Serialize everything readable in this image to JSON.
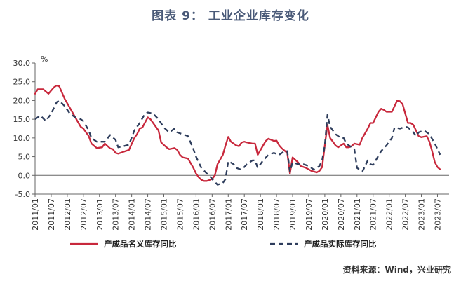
{
  "title": "图表 9： 工业企业库存变化",
  "source": "资料来源：Wind，兴业研究",
  "colors": {
    "nominal": "#c8283c",
    "actual": "#2e3d5c",
    "axis": "#666666",
    "title": "#4a5a78"
  },
  "chart_data": {
    "type": "line",
    "title": "图表 9： 工业企业库存变化",
    "unit_label": "%",
    "ylim": [
      -5,
      30
    ],
    "yticks": [
      "-5.0",
      "0.0",
      "5.0",
      "10.0",
      "15.0",
      "20.0",
      "25.0",
      "30.0"
    ],
    "xticks": [
      "2011/01",
      "2011/07",
      "2012/01",
      "2012/07",
      "2013/01",
      "2013/07",
      "2014/01",
      "2014/07",
      "2015/01",
      "2015/07",
      "2016/01",
      "2016/07",
      "2017/01",
      "2017/07",
      "2018/01",
      "2018/07",
      "2019/01",
      "2019/07",
      "2020/01",
      "2020/07",
      "2021/01",
      "2021/07",
      "2022/01",
      "2022/07",
      "2023/01",
      "2023/07"
    ],
    "grid": false,
    "legend_position": "bottom",
    "series": [
      {
        "name": "产成品名义库存同比",
        "color": "#c8283c",
        "style": "solid",
        "points": [
          [
            "2011/01",
            21.8
          ],
          [
            "2011/02",
            23
          ],
          [
            "2011/04",
            23
          ],
          [
            "2011/06",
            21.8
          ],
          [
            "2011/08",
            23.5
          ],
          [
            "2011/09",
            24
          ],
          [
            "2011/10",
            23.8
          ],
          [
            "2011/12",
            20.5
          ],
          [
            "2012/02",
            18
          ],
          [
            "2012/04",
            15.5
          ],
          [
            "2012/06",
            13
          ],
          [
            "2012/07",
            12.5
          ],
          [
            "2012/09",
            10.5
          ],
          [
            "2012/10",
            8.5
          ],
          [
            "2012/12",
            7.3
          ],
          [
            "2013/02",
            7.5
          ],
          [
            "2013/03",
            8.5
          ],
          [
            "2013/05",
            7.2
          ],
          [
            "2013/06",
            7
          ],
          [
            "2013/07",
            6
          ],
          [
            "2013/08",
            5.8
          ],
          [
            "2013/10",
            6.3
          ],
          [
            "2013/12",
            6.8
          ],
          [
            "2014/02",
            10
          ],
          [
            "2014/03",
            11
          ],
          [
            "2014/04",
            12.5
          ],
          [
            "2014/05",
            12.8
          ],
          [
            "2014/07",
            15.5
          ],
          [
            "2014/08",
            15
          ],
          [
            "2014/10",
            13
          ],
          [
            "2014/11",
            12
          ],
          [
            "2014/12",
            8.8
          ],
          [
            "2015/02",
            7.5
          ],
          [
            "2015/03",
            7
          ],
          [
            "2015/05",
            7.3
          ],
          [
            "2015/06",
            6.8
          ],
          [
            "2015/07",
            5.5
          ],
          [
            "2015/08",
            4.8
          ],
          [
            "2015/10",
            4.5
          ],
          [
            "2015/12",
            2
          ],
          [
            "2016/01",
            0.5
          ],
          [
            "2016/02",
            -0.5
          ],
          [
            "2016/03",
            -1.2
          ],
          [
            "2016/04",
            -1.5
          ],
          [
            "2016/05",
            -1.5
          ],
          [
            "2016/07",
            -1
          ],
          [
            "2016/08",
            0
          ],
          [
            "2016/09",
            3
          ],
          [
            "2016/11",
            5.5
          ],
          [
            "2016/12",
            8
          ],
          [
            "2017/01",
            10.3
          ],
          [
            "2017/02",
            9
          ],
          [
            "2017/04",
            8
          ],
          [
            "2017/05",
            7.8
          ],
          [
            "2017/06",
            8.8
          ],
          [
            "2017/07",
            9
          ],
          [
            "2017/08",
            8.8
          ],
          [
            "2017/10",
            8.5
          ],
          [
            "2017/11",
            8.5
          ],
          [
            "2017/12",
            5.5
          ],
          [
            "2018/02",
            8
          ],
          [
            "2018/03",
            9.2
          ],
          [
            "2018/04",
            9.8
          ],
          [
            "2018/05",
            9.5
          ],
          [
            "2018/06",
            9.2
          ],
          [
            "2018/07",
            9.3
          ],
          [
            "2018/08",
            8
          ],
          [
            "2018/09",
            7.2
          ],
          [
            "2018/11",
            6
          ],
          [
            "2018/12",
            0.5
          ],
          [
            "2019/01",
            4.8
          ],
          [
            "2019/03",
            3.5
          ],
          [
            "2019/04",
            2.5
          ],
          [
            "2019/06",
            2
          ],
          [
            "2019/08",
            1.2
          ],
          [
            "2019/10",
            0.8
          ],
          [
            "2019/11",
            1.2
          ],
          [
            "2019/12",
            2.2
          ],
          [
            "2020/01",
            8
          ],
          [
            "2020/02",
            13.5
          ],
          [
            "2020/03",
            10
          ],
          [
            "2020/04",
            9
          ],
          [
            "2020/05",
            8
          ],
          [
            "2020/06",
            7.5
          ],
          [
            "2020/07",
            8
          ],
          [
            "2020/08",
            8.5
          ],
          [
            "2020/09",
            7.5
          ],
          [
            "2020/10",
            7.5
          ],
          [
            "2020/11",
            7.8
          ],
          [
            "2020/12",
            8.5
          ],
          [
            "2021/02",
            8.2
          ],
          [
            "2021/03",
            10
          ],
          [
            "2021/05",
            12.5
          ],
          [
            "2021/06",
            14
          ],
          [
            "2021/07",
            14
          ],
          [
            "2021/09",
            17
          ],
          [
            "2021/10",
            17.8
          ],
          [
            "2021/11",
            17.5
          ],
          [
            "2021/12",
            17
          ],
          [
            "2022/02",
            17
          ],
          [
            "2022/04",
            20
          ],
          [
            "2022/05",
            19.8
          ],
          [
            "2022/06",
            19
          ],
          [
            "2022/08",
            14
          ],
          [
            "2022/09",
            14
          ],
          [
            "2022/10",
            13.5
          ],
          [
            "2022/11",
            12
          ],
          [
            "2022/12",
            10.5
          ],
          [
            "2023/01",
            10.2
          ],
          [
            "2023/03",
            10.5
          ],
          [
            "2023/04",
            9
          ],
          [
            "2023/05",
            6.5
          ],
          [
            "2023/06",
            3.5
          ],
          [
            "2023/07",
            2.2
          ],
          [
            "2023/08",
            1.6
          ]
        ]
      },
      {
        "name": "产成品实际库存同比",
        "color": "#2e3d5c",
        "style": "dashed",
        "points": [
          [
            "2011/01",
            15
          ],
          [
            "2011/03",
            16
          ],
          [
            "2011/05",
            14.5
          ],
          [
            "2011/07",
            16.5
          ],
          [
            "2011/09",
            19.5
          ],
          [
            "2011/10",
            20
          ],
          [
            "2011/12",
            18.5
          ],
          [
            "2012/02",
            16.5
          ],
          [
            "2012/04",
            15.5
          ],
          [
            "2012/06",
            15
          ],
          [
            "2012/07",
            14.5
          ],
          [
            "2012/09",
            12
          ],
          [
            "2012/10",
            10
          ],
          [
            "2012/12",
            9
          ],
          [
            "2013/02",
            9
          ],
          [
            "2013/03",
            9
          ],
          [
            "2013/05",
            10.8
          ],
          [
            "2013/07",
            9.5
          ],
          [
            "2013/08",
            7.5
          ],
          [
            "2013/10",
            7.8
          ],
          [
            "2013/12",
            8.2
          ],
          [
            "2014/02",
            12
          ],
          [
            "2014/04",
            14
          ],
          [
            "2014/06",
            16.5
          ],
          [
            "2014/07",
            16.8
          ],
          [
            "2014/09",
            16.5
          ],
          [
            "2014/11",
            15
          ],
          [
            "2015/01",
            12.8
          ],
          [
            "2015/03",
            11.5
          ],
          [
            "2015/05",
            12.5
          ],
          [
            "2015/06",
            11.5
          ],
          [
            "2015/08",
            11
          ],
          [
            "2015/10",
            10.5
          ],
          [
            "2015/12",
            7
          ],
          [
            "2016/01",
            5
          ],
          [
            "2016/03",
            2
          ],
          [
            "2016/05",
            0.5
          ],
          [
            "2016/06",
            0
          ],
          [
            "2016/07",
            -1
          ],
          [
            "2016/09",
            -2.5
          ],
          [
            "2016/11",
            -2
          ],
          [
            "2016/12",
            -1
          ],
          [
            "2017/01",
            3.8
          ],
          [
            "2017/03",
            3
          ],
          [
            "2017/04",
            2
          ],
          [
            "2017/06",
            1.5
          ],
          [
            "2017/08",
            3
          ],
          [
            "2017/10",
            4
          ],
          [
            "2017/11",
            4
          ],
          [
            "2017/12",
            2
          ],
          [
            "2018/02",
            4
          ],
          [
            "2018/04",
            5.5
          ],
          [
            "2018/06",
            6
          ],
          [
            "2018/08",
            5.5
          ],
          [
            "2018/10",
            6.5
          ],
          [
            "2018/11",
            6.5
          ],
          [
            "2018/12",
            1
          ],
          [
            "2019/01",
            3.5
          ],
          [
            "2019/03",
            3
          ],
          [
            "2019/05",
            3
          ],
          [
            "2019/07",
            2.5
          ],
          [
            "2019/09",
            1.5
          ],
          [
            "2019/11",
            2.5
          ],
          [
            "2019/12",
            4
          ],
          [
            "2020/01",
            8
          ],
          [
            "2020/02",
            16.2
          ],
          [
            "2020/03",
            13
          ],
          [
            "2020/05",
            11
          ],
          [
            "2020/07",
            10
          ],
          [
            "2020/08",
            10
          ],
          [
            "2020/09",
            8.5
          ],
          [
            "2020/11",
            7.5
          ],
          [
            "2020/12",
            7
          ],
          [
            "2021/01",
            2
          ],
          [
            "2021/03",
            1
          ],
          [
            "2021/04",
            2.5
          ],
          [
            "2021/05",
            4
          ],
          [
            "2021/06",
            3
          ],
          [
            "2021/07",
            2.8
          ],
          [
            "2021/08",
            4
          ],
          [
            "2021/10",
            6.5
          ],
          [
            "2021/12",
            8
          ],
          [
            "2022/02",
            10
          ],
          [
            "2022/03",
            12.8
          ],
          [
            "2022/05",
            12.5
          ],
          [
            "2022/07",
            13
          ],
          [
            "2022/08",
            12.8
          ],
          [
            "2022/10",
            11.5
          ],
          [
            "2022/11",
            10.5
          ],
          [
            "2022/12",
            11.5
          ],
          [
            "2023/02",
            12
          ],
          [
            "2023/04",
            11
          ],
          [
            "2023/06",
            8.5
          ],
          [
            "2023/08",
            5.5
          ]
        ]
      }
    ]
  }
}
